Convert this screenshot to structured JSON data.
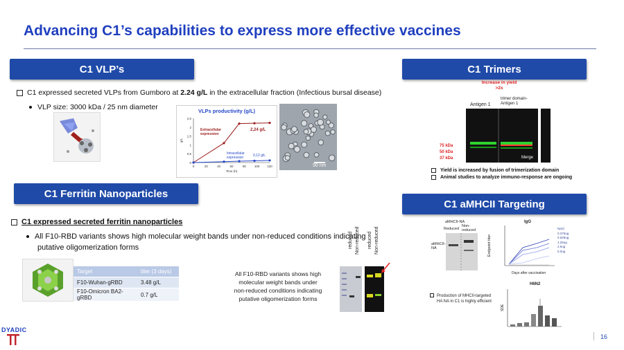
{
  "slide": {
    "title": "Advancing C1’s capabilities to express more effective vaccines",
    "page_number": "16",
    "logo_text": "DYADIC"
  },
  "vlp": {
    "header": "C1 VLP’s",
    "bullet_pre": "C1 expressed secreted VLPs from Gumboro at ",
    "bullet_bold": "2.24 g/L",
    "bullet_post": " in the extracellular fraction (Infectious bursal disease)",
    "sub": "VLP size: 3000 kDa / 25 nm diameter",
    "micrograph_scale": "50 nm"
  },
  "productivity_chart": {
    "title": "VLPs productivity (g/L)",
    "ylabel": "g/L",
    "xlabel": "Time (h)",
    "extracellular_label": "Extracellular expression",
    "intracellular_label": "Intracellular expression",
    "extracellular_value_label": "2,24 g/L",
    "intracellular_value_label": "0,12 g/L",
    "y_ticks": [
      "0",
      "0,5",
      "1",
      "1,5",
      "2",
      "2,5"
    ],
    "x_ticks": [
      "0",
      "20",
      "40",
      "60",
      "80",
      "100",
      "120"
    ]
  },
  "chart_data": {
    "type": "line",
    "title": "VLPs productivity (g/L)",
    "xlabel": "Time (h)",
    "ylabel": "g/L",
    "xlim": [
      0,
      120
    ],
    "ylim": [
      0,
      2.5
    ],
    "series": [
      {
        "name": "Extracellular expression",
        "x": [
          0,
          48,
          72,
          96,
          120
        ],
        "y": [
          0,
          1.1,
          2.2,
          2.22,
          2.24
        ],
        "color": "#9b1b1b"
      },
      {
        "name": "Intracellular expression",
        "x": [
          0,
          48,
          72,
          96,
          120
        ],
        "y": [
          0,
          0.05,
          0.08,
          0.1,
          0.12
        ],
        "color": "#2446c8"
      }
    ]
  },
  "trimers": {
    "header": "C1 Trimers",
    "increase_label": "Increase in yield >2x",
    "antigen1": "Antigen 1",
    "trimer_label": "trimer domain-Antigen 1",
    "kda": [
      "75 kDa",
      "50 kDa",
      "37 kDa"
    ],
    "merge_label": "Merge",
    "bullets": [
      "Yield is increased by fusion of trimerization domain",
      "Animal studies to analyze immuno-response are ongoing"
    ]
  },
  "ferritin": {
    "header": "C1 Ferritin Nanoparticles",
    "bullet": "C1 expressed secreted ferritin nanoparticles",
    "sub_line1": "All F10-RBD variants shows high molecular weight bands under non-reduced conditions indicating",
    "sub_line2": "putative oligomerization forms",
    "table_headers": [
      "Target",
      "titer (3 days)"
    ],
    "table_rows": [
      [
        "F10-Wuhan-gRBD",
        "3.48 g/L"
      ],
      [
        "F10-Omicron BA2-gRBD",
        "0.7 g/L"
      ]
    ],
    "caption": [
      "All F10-RBD variants shows high",
      "molecular weight bands under",
      "non-reduced conditions indicating",
      "putative oligomerization forms"
    ],
    "gel_lanes": [
      "reduced",
      "Non-reduced",
      "reduced",
      "Non-reduced"
    ]
  },
  "amhcii": {
    "header": "C1 aMHCII Targeting",
    "blot_title": "aMHCII-NA",
    "blot_reduced": "Reduced",
    "blot_nonreduced": "Non-reduced",
    "blot_side": "aMHCII-NA",
    "igg_title": "IgG",
    "igg_ylabel": "Endpoint titer",
    "igg_xlabel": "Days after vaccination",
    "igg_legend": [
      "NaCl",
      "0.375ug",
      "0.625ug",
      "1.25ug",
      "2.5ug",
      "5.0ug"
    ],
    "h6n2_title": "H6N2",
    "h6n2_ylabel": "SDE",
    "bullet_line1": "Production of MHCII-targeted",
    "bullet_line2": "HA NA in C1 is highly efficient"
  }
}
